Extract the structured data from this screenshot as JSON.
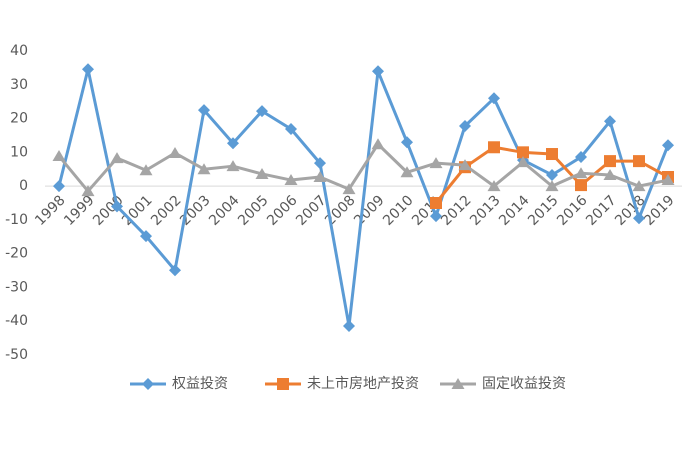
{
  "chart_data": {
    "type": "line",
    "categories": [
      "1998",
      "1999",
      "2000",
      "2001",
      "2002",
      "2003",
      "2004",
      "2005",
      "2006",
      "2007",
      "2008",
      "2009",
      "2010",
      "2011",
      "2012",
      "2013",
      "2014",
      "2015",
      "2016",
      "2017",
      "2018",
      "2019"
    ],
    "ylim": [
      -50,
      40
    ],
    "yticks": [
      -50,
      -40,
      -30,
      -20,
      -10,
      0,
      10,
      20,
      30,
      40
    ],
    "legend": "bottom",
    "series": [
      {
        "name": "权益投资",
        "color": "#5b9bd5",
        "marker": "diamond",
        "values": [
          0,
          34.6,
          -6,
          -14.8,
          -24.9,
          22.5,
          12.7,
          22.2,
          16.9,
          6.8,
          -41.4,
          34,
          13,
          -8.9,
          17.8,
          26,
          7.7,
          3.3,
          8.6,
          19.2,
          -9.5,
          12.1
        ]
      },
      {
        "name": "未上市房地产投资",
        "color": "#ed7d31",
        "marker": "square",
        "values": [
          null,
          null,
          null,
          null,
          null,
          null,
          null,
          null,
          null,
          null,
          null,
          null,
          null,
          -5,
          5.6,
          11.5,
          10,
          9.5,
          0.3,
          7.4,
          7.4,
          2.7
        ]
      },
      {
        "name": "固定收益投资",
        "color": "#a5a5a5",
        "marker": "triangle",
        "values": [
          8.9,
          -1.5,
          8.3,
          4.7,
          9.8,
          5,
          5.9,
          3.6,
          1.8,
          2.7,
          -0.9,
          12.4,
          4.1,
          6.8,
          6.2,
          0,
          7.1,
          0,
          3.8,
          3.3,
          0,
          1.8
        ]
      }
    ]
  }
}
